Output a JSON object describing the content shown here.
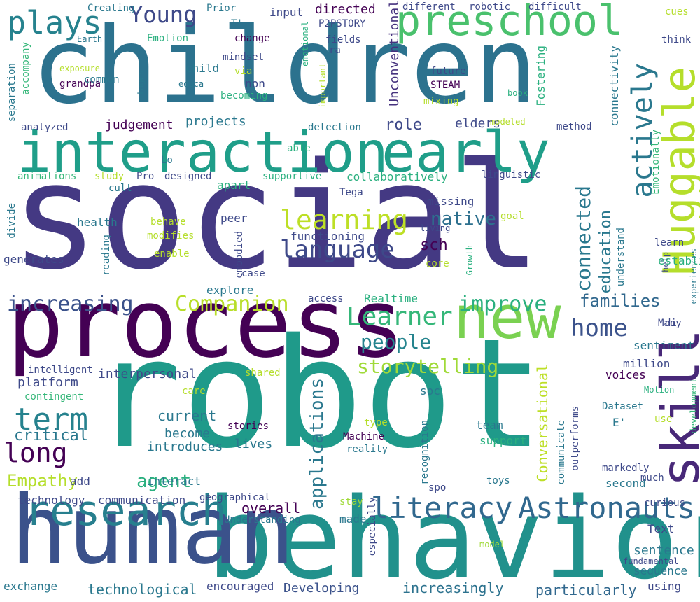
{
  "cloud": {
    "words": [
      {
        "text": "social",
        "color": "#443983"
      },
      {
        "text": "robot",
        "color": "#1f9a8a"
      },
      {
        "text": "children",
        "color": "#2c728e"
      },
      {
        "text": "behavior",
        "color": "#21918c"
      },
      {
        "text": "process",
        "color": "#440154"
      },
      {
        "text": "human",
        "color": "#3b528b"
      },
      {
        "text": "interaction",
        "color": "#1f9e89"
      },
      {
        "text": "early",
        "color": "#1f9e89"
      },
      {
        "text": "new",
        "color": "#7ad151"
      },
      {
        "text": "research",
        "color": "#277f8e"
      },
      {
        "text": "preschool",
        "color": "#4ac16d"
      },
      {
        "text": "Huggable",
        "color": "#b5de2b"
      },
      {
        "text": "skill",
        "color": "#482878"
      },
      {
        "text": "literacy",
        "color": "#31688e"
      },
      {
        "text": "Astronauts",
        "color": "#31688e"
      },
      {
        "text": "actively",
        "color": "#2a788e"
      },
      {
        "text": "plays",
        "color": "#26828e"
      },
      {
        "text": "Young",
        "color": "#3e4989"
      },
      {
        "text": "language",
        "color": "#3e4989"
      },
      {
        "text": "learning",
        "color": "#bddf26"
      },
      {
        "text": "Learner",
        "color": "#35b779"
      },
      {
        "text": "increasing",
        "color": "#3b528b"
      },
      {
        "text": "Companion",
        "color": "#b8de29"
      },
      {
        "text": "improve",
        "color": "#2ab07f"
      },
      {
        "text": "home",
        "color": "#3b528b"
      },
      {
        "text": "term",
        "color": "#26828e"
      },
      {
        "text": "long",
        "color": "#440154"
      },
      {
        "text": "people",
        "color": "#25848e"
      },
      {
        "text": "storytelling",
        "color": "#a0da39"
      },
      {
        "text": "connected",
        "color": "#2a788e"
      },
      {
        "text": "families",
        "color": "#31688e"
      },
      {
        "text": "education",
        "color": "#2a788e"
      },
      {
        "text": "native",
        "color": "#2d708e"
      },
      {
        "text": "applications",
        "color": "#2a788e"
      },
      {
        "text": "Empathy",
        "color": "#b5de2b"
      },
      {
        "text": "agent",
        "color": "#2ab07f"
      },
      {
        "text": "Conversational",
        "color": "#bddf26"
      },
      {
        "text": "technological",
        "color": "#2a788e"
      },
      {
        "text": "particularly",
        "color": "#31688e"
      },
      {
        "text": "increasingly",
        "color": "#2c728e"
      },
      {
        "text": "Developing",
        "color": "#3b528b"
      },
      {
        "text": "role",
        "color": "#3e4989"
      },
      {
        "text": "judgement",
        "color": "#440154"
      },
      {
        "text": "projects",
        "color": "#2a788e"
      },
      {
        "text": "elders",
        "color": "#3e4989"
      },
      {
        "text": "directed",
        "color": "#440154"
      },
      {
        "text": "Unconventional",
        "color": "#46327e"
      },
      {
        "text": "Fostering",
        "color": "#2ab07f"
      },
      {
        "text": "connectivity",
        "color": "#2a788e"
      },
      {
        "text": "Emotionally",
        "color": "#35b779"
      },
      {
        "text": "critical",
        "color": "#2a788e"
      },
      {
        "text": "platform",
        "color": "#3e4989"
      },
      {
        "text": "interpersonal",
        "color": "#3e4989"
      },
      {
        "text": "overall",
        "color": "#440154"
      },
      {
        "text": "sentence",
        "color": "#2a788e"
      },
      {
        "text": "sentiment",
        "color": "#2a788e"
      },
      {
        "text": "current",
        "color": "#2a788e"
      },
      {
        "text": "become",
        "color": "#2a788e"
      },
      {
        "text": "introduces",
        "color": "#2a788e"
      },
      {
        "text": "interact",
        "color": "#2a788e"
      },
      {
        "text": "encouraged",
        "color": "#3e4989"
      },
      {
        "text": "exchange",
        "color": "#2a788e"
      },
      {
        "text": "communication",
        "color": "#3e4989"
      },
      {
        "text": "technology",
        "color": "#3e4989"
      },
      {
        "text": "Understanding",
        "color": "#2a788e"
      },
      {
        "text": "geographical",
        "color": "#3e4989"
      },
      {
        "text": "made",
        "color": "#2a788e"
      },
      {
        "text": "especially",
        "color": "#3e4989"
      },
      {
        "text": "Text",
        "color": "#3e4989"
      },
      {
        "text": "fundamental",
        "color": "#3e4989"
      },
      {
        "text": "sequence",
        "color": "#2a788e"
      },
      {
        "text": "using",
        "color": "#3e4989"
      },
      {
        "text": "model",
        "color": "#a0da39"
      },
      {
        "text": "stay",
        "color": "#a0da39"
      },
      {
        "text": "spo",
        "color": "#3e4989"
      },
      {
        "text": "recognition",
        "color": "#2a788e"
      },
      {
        "text": "reality",
        "color": "#2a788e"
      },
      {
        "text": "Machine",
        "color": "#440154"
      },
      {
        "text": "type",
        "color": "#b5de2b"
      },
      {
        "text": "team",
        "color": "#2a788e"
      },
      {
        "text": "support",
        "color": "#2ab07f"
      },
      {
        "text": "toys",
        "color": "#2a788e"
      },
      {
        "text": "communicate",
        "color": "#2a788e"
      },
      {
        "text": "outperforms",
        "color": "#3e4989"
      },
      {
        "text": "markedly",
        "color": "#3e4989"
      },
      {
        "text": "second",
        "color": "#2a788e"
      },
      {
        "text": "much",
        "color": "#3e4989"
      },
      {
        "text": "curious",
        "color": "#3e4989"
      },
      {
        "text": "Dataset",
        "color": "#2a788e"
      },
      {
        "text": "use",
        "color": "#b5de2b"
      },
      {
        "text": "E'",
        "color": "#2a788e"
      },
      {
        "text": "Motion",
        "color": "#2ab07f"
      },
      {
        "text": "development",
        "color": "#35b779"
      },
      {
        "text": "voices",
        "color": "#440154"
      },
      {
        "text": "care",
        "color": "#b5de2b"
      },
      {
        "text": "million",
        "color": "#3e4989"
      },
      {
        "text": "di",
        "color": "#3e4989"
      },
      {
        "text": "Many",
        "color": "#3e4989"
      },
      {
        "text": "established",
        "color": "#2ab07f"
      },
      {
        "text": "help",
        "color": "#3e4989"
      },
      {
        "text": "experiences",
        "color": "#2a788e"
      },
      {
        "text": "soc",
        "color": "#2a788e"
      },
      {
        "text": "stories",
        "color": "#440154"
      },
      {
        "text": "lives",
        "color": "#2a788e"
      },
      {
        "text": "add",
        "color": "#3e4989"
      },
      {
        "text": "shared",
        "color": "#b5de2b"
      },
      {
        "text": "intelligent",
        "color": "#3e4989"
      },
      {
        "text": "contingent",
        "color": "#35b779"
      },
      {
        "text": "access",
        "color": "#3e4989"
      },
      {
        "text": "Realtime",
        "color": "#2ab07f"
      },
      {
        "text": "explore",
        "color": "#2a788e"
      },
      {
        "text": "case",
        "color": "#3e4989"
      },
      {
        "text": "embodied",
        "color": "#3e4989"
      },
      {
        "text": "reading",
        "color": "#2a788e"
      },
      {
        "text": "enable",
        "color": "#b5de2b"
      },
      {
        "text": "modifies",
        "color": "#b5de2b"
      },
      {
        "text": "behave",
        "color": "#b5de2b"
      },
      {
        "text": "health",
        "color": "#2a788e"
      },
      {
        "text": "divide",
        "color": "#2a788e"
      },
      {
        "text": "generates",
        "color": "#3e4989"
      },
      {
        "text": "peer",
        "color": "#3e4989"
      },
      {
        "text": "apart",
        "color": "#2ab07f"
      },
      {
        "text": "functioning",
        "color": "#3e4989"
      },
      {
        "text": "sch",
        "color": "#440154"
      },
      {
        "text": "missing",
        "color": "#3e4989"
      },
      {
        "text": "living",
        "color": "#3e4989"
      },
      {
        "text": "goal",
        "color": "#b5de2b"
      },
      {
        "text": "core",
        "color": "#b5de2b"
      },
      {
        "text": "Growth",
        "color": "#2ab07f"
      },
      {
        "text": "understand",
        "color": "#2a788e"
      },
      {
        "text": "learn",
        "color": "#3e4989"
      },
      {
        "text": "Tega",
        "color": "#3e4989"
      },
      {
        "text": "linguistic",
        "color": "#3e4989"
      },
      {
        "text": "collaboratively",
        "color": "#2ab07f"
      },
      {
        "text": "supportive",
        "color": "#2ab07f"
      },
      {
        "text": "designed",
        "color": "#3e4989"
      },
      {
        "text": "Pro",
        "color": "#3e4989"
      },
      {
        "text": "cult",
        "color": "#2a788e"
      },
      {
        "text": "study",
        "color": "#b5de2b"
      },
      {
        "text": "animations",
        "color": "#35b779"
      },
      {
        "text": "Lo",
        "color": "#2a788e"
      },
      {
        "text": "able",
        "color": "#2ab07f"
      },
      {
        "text": "detection",
        "color": "#2a788e"
      },
      {
        "text": "analyzed",
        "color": "#3e4989"
      },
      {
        "text": "separation",
        "color": "#2a788e"
      },
      {
        "text": "accompany",
        "color": "#35b779"
      },
      {
        "text": "exposure",
        "color": "#b5de2b"
      },
      {
        "text": "grandpa",
        "color": "#440154"
      },
      {
        "text": "common",
        "color": "#2a788e"
      },
      {
        "text": "stages",
        "color": "#2a788e"
      },
      {
        "text": "child",
        "color": "#2a788e"
      },
      {
        "text": "educa",
        "color": "#2a788e"
      },
      {
        "text": "Emotion",
        "color": "#2ab07f"
      },
      {
        "text": "Earth",
        "color": "#2a788e"
      },
      {
        "text": "Creating",
        "color": "#2a788e"
      },
      {
        "text": "Prior",
        "color": "#2a788e"
      },
      {
        "text": "T'",
        "color": "#2a788e"
      },
      {
        "text": "mindset",
        "color": "#3e4989"
      },
      {
        "text": "change",
        "color": "#440154"
      },
      {
        "text": "via",
        "color": "#b5de2b"
      },
      {
        "text": "non",
        "color": "#3e4989"
      },
      {
        "text": "becoming",
        "color": "#2ab07f"
      },
      {
        "text": "input",
        "color": "#3e4989"
      },
      {
        "text": "P2PSTORY",
        "color": "#3e4989"
      },
      {
        "text": "fields",
        "color": "#3e4989"
      },
      {
        "text": "ra",
        "color": "#3e4989"
      },
      {
        "text": "emotional",
        "color": "#2ab07f"
      },
      {
        "text": "important",
        "color": "#b5de2b"
      },
      {
        "text": "different",
        "color": "#3e4989"
      },
      {
        "text": "robotic",
        "color": "#3e4989"
      },
      {
        "text": "difficult",
        "color": "#3e4989"
      },
      {
        "text": "future",
        "color": "#3e4989"
      },
      {
        "text": "STEAM",
        "color": "#440154"
      },
      {
        "text": "mixing",
        "color": "#b5de2b"
      },
      {
        "text": "book",
        "color": "#2ab07f"
      },
      {
        "text": "modeled",
        "color": "#b5de2b"
      },
      {
        "text": "method",
        "color": "#3e4989"
      },
      {
        "text": "think",
        "color": "#3e4989"
      },
      {
        "text": "cues",
        "color": "#b5de2b"
      }
    ]
  }
}
